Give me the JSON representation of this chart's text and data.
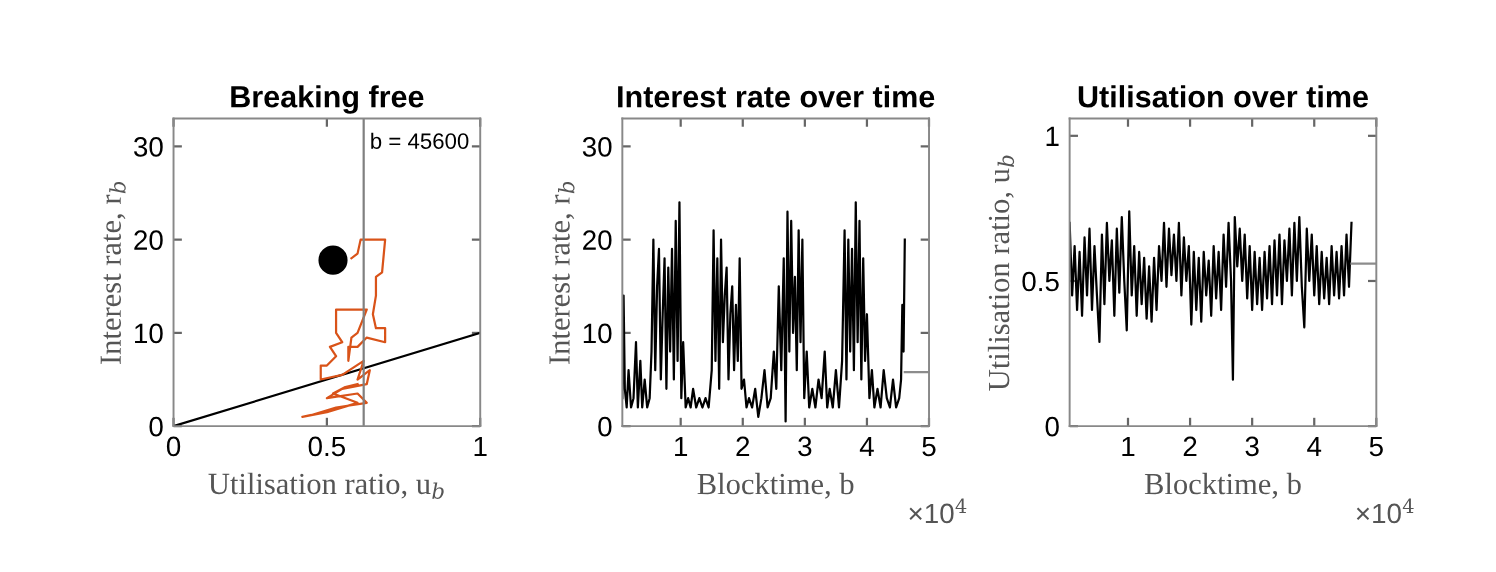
{
  "chart_data": [
    {
      "type": "line",
      "title": "Breaking free",
      "xlabel": "Utilisation ratio, u$_{b}$",
      "ylabel": "Interest rate, r$_{b}$",
      "annotations": [
        "b = 45600"
      ],
      "xlim": [
        0,
        1
      ],
      "ylim": [
        0,
        33
      ],
      "xticks": [
        0,
        0.5,
        1
      ],
      "yticks": [
        0,
        10,
        20,
        30
      ],
      "grid": false,
      "legend": false,
      "ref_lines": [
        {
          "axis": "x",
          "value": 0.62,
          "color": "#808080"
        }
      ],
      "series": [
        {
          "type": "line",
          "color": "#000000",
          "x": [
            0,
            1
          ],
          "values": [
            0,
            10
          ]
        },
        {
          "type": "line",
          "color": "#d95319",
          "x": [
            0.58,
            0.6,
            0.61,
            0.69,
            0.68,
            0.66,
            0.66,
            0.65,
            0.66,
            0.69,
            0.69,
            0.63,
            0.6,
            0.57,
            0.57,
            0.58,
            0.6,
            0.63,
            0.53,
            0.53,
            0.55,
            0.51,
            0.53,
            0.5,
            0.48,
            0.48,
            0.55,
            0.62,
            0.6,
            0.64,
            0.63,
            0.55,
            0.5,
            0.6,
            0.63,
            0.53,
            0.45,
            0.42,
            0.5,
            0.6,
            0.52,
            0.56,
            0.6
          ],
          "values": [
            18,
            18.5,
            20,
            20,
            16.5,
            16,
            14,
            12,
            10.5,
            10.5,
            9,
            9.5,
            8.5,
            8.5,
            7,
            9.5,
            10,
            12.5,
            12.5,
            10,
            9,
            8.5,
            7.5,
            6.5,
            6.5,
            5,
            5.5,
            7,
            5,
            6,
            4.5,
            4,
            3,
            3.5,
            2.5,
            2,
            1.2,
            1,
            1.5,
            2.5,
            3.5,
            4.2,
            4.5
          ]
        },
        {
          "type": "scatter",
          "color": "#000000",
          "marker": "circle",
          "x": [
            0.52
          ],
          "values": [
            17.8
          ]
        }
      ]
    },
    {
      "type": "line",
      "title": "Interest rate over time",
      "xlabel": "Blocktime, b",
      "ylabel": "Interest rate, r$_{b}$",
      "annotations": [
        "×10$^{4}$"
      ],
      "xlim": [
        0.06,
        5
      ],
      "ylim": [
        0,
        33
      ],
      "xticks": [
        1,
        2,
        3,
        4,
        5
      ],
      "yticks": [
        0,
        10,
        20,
        30
      ],
      "grid": false,
      "legend": false,
      "series": [
        {
          "type": "line",
          "color": "#000000",
          "x": [
            0.06,
            0.08,
            0.1,
            0.13,
            0.16,
            0.2,
            0.24,
            0.28,
            0.31,
            0.35,
            0.38,
            0.42,
            0.46,
            0.5,
            0.53,
            0.56,
            0.59,
            0.62,
            0.65,
            0.68,
            0.71,
            0.74,
            0.77,
            0.8,
            0.83,
            0.86,
            0.89,
            0.92,
            0.95,
            0.98,
            1.01,
            1.04,
            1.08,
            1.12,
            1.16,
            1.2,
            1.25,
            1.3,
            1.35,
            1.4,
            1.45,
            1.5,
            1.53,
            1.56,
            1.59,
            1.62,
            1.65,
            1.68,
            1.71,
            1.74,
            1.77,
            1.8,
            1.83,
            1.86,
            1.89,
            1.92,
            1.95,
            1.98,
            2.02,
            2.06,
            2.1,
            2.15,
            2.2,
            2.25,
            2.3,
            2.35,
            2.4,
            2.45,
            2.5,
            2.54,
            2.58,
            2.62,
            2.66,
            2.69,
            2.72,
            2.75,
            2.78,
            2.81,
            2.84,
            2.87,
            2.9,
            2.93,
            2.96,
            2.99,
            3.03,
            3.07,
            3.12,
            3.17,
            3.22,
            3.27,
            3.32,
            3.36,
            3.4,
            3.45,
            3.5,
            3.55,
            3.6,
            3.64,
            3.67,
            3.7,
            3.73,
            3.76,
            3.79,
            3.82,
            3.85,
            3.88,
            3.91,
            3.94,
            3.97,
            4.0,
            4.04,
            4.08,
            4.12,
            4.17,
            4.22,
            4.27,
            4.32,
            4.37,
            4.42,
            4.47,
            4.52,
            4.55,
            4.57,
            4.59,
            4.61
          ],
          "values": [
            3,
            14,
            4,
            2,
            6,
            2,
            3,
            9,
            2,
            7,
            2,
            5,
            2,
            3,
            8,
            20,
            6,
            15,
            19,
            5,
            12,
            18,
            4,
            17,
            8,
            19,
            5,
            22,
            7,
            24,
            3,
            9,
            2,
            3,
            2,
            4,
            2,
            3,
            2,
            3,
            2,
            6,
            21,
            7,
            18,
            4,
            20,
            9,
            14,
            17,
            5,
            12,
            15,
            6,
            13,
            7,
            18,
            4,
            5,
            2,
            3,
            2,
            4,
            1,
            3,
            6,
            2,
            3,
            8,
            4,
            15,
            6,
            18,
            0.5,
            23,
            8,
            22,
            10,
            16,
            6,
            21,
            9,
            20,
            3,
            8,
            2,
            4,
            2,
            5,
            3,
            8,
            2,
            4,
            2,
            6,
            2,
            7,
            21,
            5,
            20,
            8,
            19,
            6,
            24,
            9,
            22,
            5,
            18,
            7,
            12,
            3,
            6,
            2,
            4,
            2,
            6,
            3,
            2,
            5,
            2,
            3,
            5,
            13,
            8,
            20
          ]
        },
        {
          "type": "line",
          "color": "#8c8c8c",
          "x": [
            4.61,
            5
          ],
          "values": [
            5.8,
            5.8
          ]
        }
      ]
    },
    {
      "type": "line",
      "title": "Utilisation over time",
      "xlabel": "Blocktime, b",
      "ylabel": "Utilisation ratio, u$_{b}$",
      "annotations": [
        "×10$^{4}$"
      ],
      "xlim": [
        0.06,
        5
      ],
      "ylim": [
        0,
        1.06
      ],
      "xticks": [
        1,
        2,
        3,
        4,
        5
      ],
      "yticks": [
        0,
        0.5,
        1
      ],
      "grid": false,
      "legend": false,
      "series": [
        {
          "type": "line",
          "color": "#000000",
          "x": [
            0.06,
            0.1,
            0.14,
            0.18,
            0.22,
            0.26,
            0.3,
            0.34,
            0.38,
            0.42,
            0.46,
            0.5,
            0.54,
            0.58,
            0.62,
            0.66,
            0.7,
            0.74,
            0.78,
            0.82,
            0.86,
            0.9,
            0.94,
            0.98,
            1.02,
            1.06,
            1.1,
            1.14,
            1.18,
            1.22,
            1.26,
            1.3,
            1.34,
            1.38,
            1.42,
            1.46,
            1.5,
            1.54,
            1.58,
            1.62,
            1.66,
            1.7,
            1.74,
            1.78,
            1.82,
            1.86,
            1.9,
            1.94,
            1.98,
            2.02,
            2.06,
            2.1,
            2.14,
            2.18,
            2.22,
            2.26,
            2.3,
            2.34,
            2.38,
            2.42,
            2.46,
            2.5,
            2.54,
            2.58,
            2.62,
            2.66,
            2.69,
            2.72,
            2.76,
            2.8,
            2.84,
            2.88,
            2.92,
            2.96,
            3.0,
            3.04,
            3.08,
            3.12,
            3.16,
            3.2,
            3.24,
            3.28,
            3.32,
            3.36,
            3.4,
            3.44,
            3.48,
            3.52,
            3.56,
            3.6,
            3.64,
            3.68,
            3.72,
            3.76,
            3.8,
            3.84,
            3.88,
            3.92,
            3.96,
            4.0,
            4.04,
            4.08,
            4.12,
            4.16,
            4.2,
            4.24,
            4.28,
            4.32,
            4.36,
            4.4,
            4.44,
            4.48,
            4.52,
            4.56,
            4.6
          ],
          "values": [
            0.7,
            0.45,
            0.62,
            0.4,
            0.6,
            0.38,
            0.65,
            0.45,
            0.68,
            0.4,
            0.62,
            0.45,
            0.29,
            0.66,
            0.42,
            0.7,
            0.5,
            0.64,
            0.38,
            0.68,
            0.46,
            0.72,
            0.5,
            0.33,
            0.74,
            0.45,
            0.62,
            0.38,
            0.6,
            0.42,
            0.58,
            0.37,
            0.55,
            0.36,
            0.58,
            0.4,
            0.62,
            0.5,
            0.7,
            0.48,
            0.68,
            0.52,
            0.66,
            0.5,
            0.7,
            0.45,
            0.65,
            0.5,
            0.62,
            0.35,
            0.6,
            0.4,
            0.58,
            0.36,
            0.6,
            0.45,
            0.57,
            0.38,
            0.62,
            0.44,
            0.6,
            0.4,
            0.66,
            0.48,
            0.7,
            0.5,
            0.16,
            0.72,
            0.55,
            0.68,
            0.5,
            0.66,
            0.44,
            0.62,
            0.4,
            0.6,
            0.42,
            0.58,
            0.4,
            0.6,
            0.44,
            0.62,
            0.42,
            0.64,
            0.45,
            0.66,
            0.42,
            0.64,
            0.5,
            0.68,
            0.45,
            0.7,
            0.5,
            0.72,
            0.48,
            0.34,
            0.68,
            0.5,
            0.66,
            0.45,
            0.62,
            0.42,
            0.6,
            0.44,
            0.58,
            0.42,
            0.62,
            0.45,
            0.6,
            0.44,
            0.62,
            0.45,
            0.66,
            0.48,
            0.7
          ]
        },
        {
          "type": "line",
          "color": "#8c8c8c",
          "x": [
            4.6,
            5
          ],
          "values": [
            0.56,
            0.56
          ]
        }
      ]
    }
  ]
}
